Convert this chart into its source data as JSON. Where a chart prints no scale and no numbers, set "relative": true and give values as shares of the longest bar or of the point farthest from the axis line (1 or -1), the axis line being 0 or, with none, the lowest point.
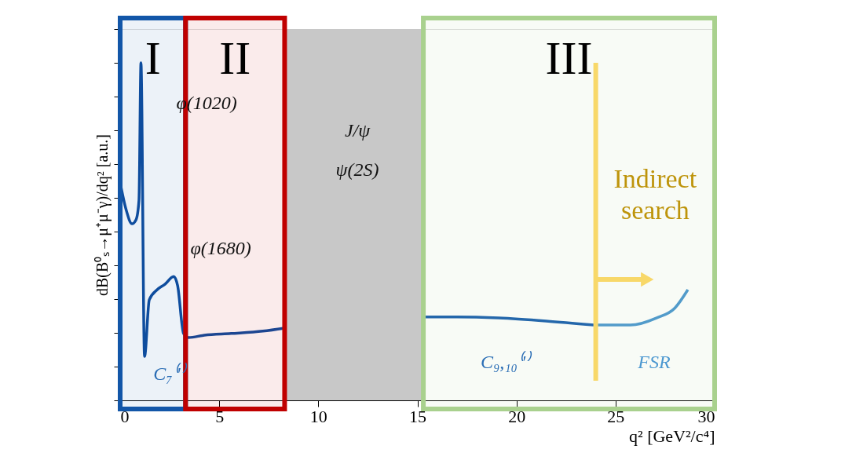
{
  "chart_data": {
    "type": "line",
    "relative": true,
    "xlabel": "q² [GeV²/c⁴]",
    "ylabel": "dB(B⁰ₛ→μ⁺μ⁻γ)/dq² [a.u.]",
    "xlim": [
      0,
      30
    ],
    "xticks": [
      0,
      5,
      10,
      15,
      20,
      25,
      30
    ],
    "grid": false,
    "line_style": "solid",
    "series": [
      {
        "color": "#0f4c9e",
        "x": [
          0.05,
          0.3,
          0.6,
          0.8,
          0.95,
          1.05,
          1.23,
          1.47,
          1.87,
          2.26,
          2.7,
          2.9,
          3.2,
          3.45,
          4.25,
          5.6,
          7.2,
          8.3
        ],
        "values": [
          0.63,
          0.565,
          0.523,
          0.535,
          0.593,
          1.0,
          0.13,
          0.298,
          0.328,
          0.344,
          0.367,
          0.34,
          0.198,
          0.186,
          0.193,
          0.198,
          0.205,
          0.214
        ]
      },
      {
        "color": "#1a5fae",
        "x": [
          15.35,
          17,
          19.1,
          21.5,
          23.9
        ],
        "values": [
          0.247,
          0.247,
          0.244,
          0.235,
          0.223
        ]
      },
      {
        "color": "#4b97d0",
        "x": [
          23.9,
          25.75,
          27.06,
          28.0,
          28.65
        ],
        "values": [
          0.223,
          0.223,
          0.244,
          0.274,
          0.328
        ]
      }
    ],
    "bands": [
      {
        "axis": "x",
        "from": 8.3,
        "to": 15.3,
        "color": "#c8c8c8"
      },
      {
        "axis": "x",
        "from": 0,
        "to": 3.3,
        "label": "I",
        "color": "#1256a8"
      },
      {
        "axis": "x",
        "from": 3.3,
        "to": 8.3,
        "label": "II",
        "color": "#c00000"
      },
      {
        "axis": "x",
        "from": 15.3,
        "to": 30,
        "label": "III",
        "color": "#a9d18e"
      }
    ],
    "ref_lines": [
      {
        "axis": "x",
        "value": 24,
        "label": "Indirect search",
        "color": "#ffd966"
      }
    ],
    "annotations": [
      "φ(1020)",
      "φ(1680)",
      "J/ψ",
      "ψ(2S)",
      "C₇⁽'⁾",
      "C₉,₁₀⁽'⁾",
      "FSR"
    ]
  }
}
